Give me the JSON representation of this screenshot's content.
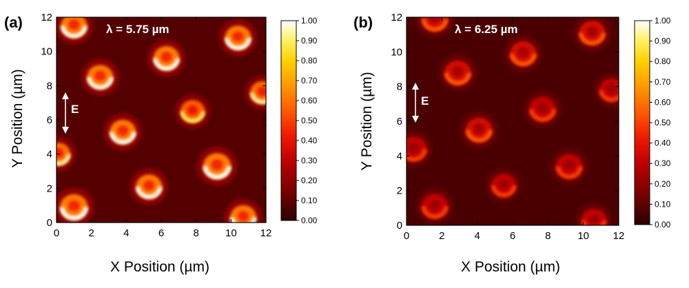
{
  "chart_data": [
    {
      "type": "heatmap",
      "panel_label": "(a)",
      "annotation": "λ = 5.75 µm",
      "field_label": "E",
      "xlabel": "X Position (µm)",
      "ylabel": "Y Position (µm)",
      "xlim": [
        0,
        12
      ],
      "ylim": [
        0,
        12
      ],
      "x_ticks": [
        "0",
        "2",
        "4",
        "6",
        "8",
        "10",
        "12"
      ],
      "y_ticks": [
        "0",
        "2",
        "4",
        "6",
        "8",
        "10",
        "12"
      ],
      "colorbar_range": [
        0,
        1
      ],
      "colorbar_ticks": [
        "0.00",
        "0.10",
        "0.20",
        "0.30",
        "0.40",
        "0.50",
        "0.60",
        "0.70",
        "0.80",
        "0.90",
        "1.00"
      ],
      "background_level": 0.08,
      "spots": [
        {
          "x": 1.0,
          "y": 11.5,
          "radius": 0.75,
          "peak": 1.0
        },
        {
          "x": 10.4,
          "y": 10.8,
          "radius": 0.75,
          "peak": 1.0
        },
        {
          "x": 6.3,
          "y": 9.6,
          "radius": 0.75,
          "peak": 1.0
        },
        {
          "x": 2.5,
          "y": 8.5,
          "radius": 0.75,
          "peak": 1.0
        },
        {
          "x": 11.8,
          "y": 7.6,
          "radius": 0.7,
          "peak": 0.95
        },
        {
          "x": 7.8,
          "y": 6.5,
          "radius": 0.7,
          "peak": 0.9
        },
        {
          "x": 3.8,
          "y": 5.3,
          "radius": 0.75,
          "peak": 1.0
        },
        {
          "x": 0.1,
          "y": 4.0,
          "radius": 0.7,
          "peak": 0.95
        },
        {
          "x": 9.2,
          "y": 3.3,
          "radius": 0.8,
          "peak": 1.0
        },
        {
          "x": 5.3,
          "y": 2.1,
          "radius": 0.75,
          "peak": 1.0
        },
        {
          "x": 1.0,
          "y": 0.9,
          "radius": 0.8,
          "peak": 1.0
        },
        {
          "x": 10.7,
          "y": 0.3,
          "radius": 0.75,
          "peak": 1.0
        }
      ]
    },
    {
      "type": "heatmap",
      "panel_label": "(b)",
      "annotation": "λ = 6.25 µm",
      "field_label": "E",
      "xlabel": "X Position (µm)",
      "ylabel": "Y Position (µm)",
      "xlim": [
        0,
        12
      ],
      "ylim": [
        0,
        12
      ],
      "x_ticks": [
        "0",
        "2",
        "4",
        "6",
        "8",
        "10",
        "12"
      ],
      "y_ticks": [
        "0",
        "2",
        "4",
        "6",
        "8",
        "10",
        "12"
      ],
      "colorbar_range": [
        0,
        1
      ],
      "colorbar_ticks": [
        "0.00",
        "0.10",
        "0.20",
        "0.30",
        "0.40",
        "0.50",
        "0.60",
        "0.70",
        "0.80",
        "0.90",
        "1.00"
      ],
      "background_level": 0.06,
      "spots": [
        {
          "x": 1.6,
          "y": 11.9,
          "radius": 0.75,
          "peak": 0.55
        },
        {
          "x": 10.5,
          "y": 11.1,
          "radius": 0.75,
          "peak": 0.55
        },
        {
          "x": 6.6,
          "y": 9.9,
          "radius": 0.75,
          "peak": 0.55
        },
        {
          "x": 2.9,
          "y": 8.8,
          "radius": 0.75,
          "peak": 0.55
        },
        {
          "x": 11.6,
          "y": 7.8,
          "radius": 0.7,
          "peak": 0.5
        },
        {
          "x": 7.7,
          "y": 6.7,
          "radius": 0.75,
          "peak": 0.5
        },
        {
          "x": 4.1,
          "y": 5.5,
          "radius": 0.75,
          "peak": 0.55
        },
        {
          "x": 0.4,
          "y": 4.4,
          "radius": 0.75,
          "peak": 0.5
        },
        {
          "x": 9.2,
          "y": 3.4,
          "radius": 0.75,
          "peak": 0.5
        },
        {
          "x": 5.5,
          "y": 2.3,
          "radius": 0.7,
          "peak": 0.5
        },
        {
          "x": 1.6,
          "y": 1.1,
          "radius": 0.75,
          "peak": 0.5
        },
        {
          "x": 10.6,
          "y": 0.3,
          "radius": 0.7,
          "peak": 0.5
        }
      ]
    }
  ]
}
